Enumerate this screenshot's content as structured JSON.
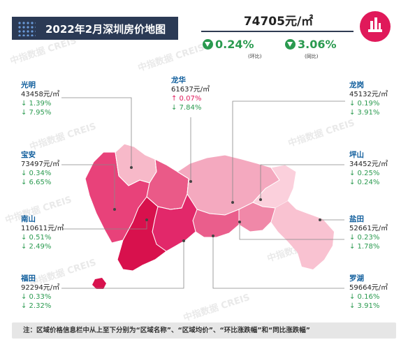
{
  "header": {
    "title": "2022年2月深圳房价地图",
    "avg_price": "74705元/㎡",
    "mom": {
      "value": "0.24%",
      "label": "(环比)"
    },
    "yoy": {
      "value": "3.06%",
      "label": "(同比)"
    }
  },
  "watermark": "中指数据 CREIS",
  "districts": [
    {
      "id": "guangming",
      "name": "光明",
      "price": "43458元/㎡",
      "mom": "↓ 1.39%",
      "yoy": "↓ 7.95%",
      "mom_dir": "down",
      "yoy_dir": "down",
      "color": "#f7b9c9"
    },
    {
      "id": "longhua",
      "name": "龙华",
      "price": "61637元/㎡",
      "mom": "↑ 0.07%",
      "yoy": "↓ 7.84%",
      "mom_dir": "up",
      "yoy_dir": "down",
      "color": "#ea5a88"
    },
    {
      "id": "longgang",
      "name": "龙岗",
      "price": "45132元/㎡",
      "mom": "↓ 0.19%",
      "yoy": "↓ 3.91%",
      "mom_dir": "down",
      "yoy_dir": "down",
      "color": "#f4a9bf"
    },
    {
      "id": "baoan",
      "name": "宝安",
      "price": "73497元/㎡",
      "mom": "↓ 0.34%",
      "yoy": "↓ 6.65%",
      "mom_dir": "down",
      "yoy_dir": "down",
      "color": "#e8427a"
    },
    {
      "id": "pingshan",
      "name": "坪山",
      "price": "34452元/㎡",
      "mom": "↓ 0.25%",
      "yoy": "↓ 0.24%",
      "mom_dir": "down",
      "yoy_dir": "down",
      "color": "#fbd0dc"
    },
    {
      "id": "nanshan",
      "name": "南山",
      "price": "110611元/㎡",
      "mom": "↓ 0.51%",
      "yoy": "↓ 2.49%",
      "mom_dir": "down",
      "yoy_dir": "down",
      "color": "#d8114d"
    },
    {
      "id": "yantian",
      "name": "盐田",
      "price": "52661元/㎡",
      "mom": "↓ 0.23%",
      "yoy": "↓ 1.78%",
      "mom_dir": "down",
      "yoy_dir": "down",
      "color": "#f088a8"
    },
    {
      "id": "futian",
      "name": "福田",
      "price": "92294元/㎡",
      "mom": "↓ 0.33%",
      "yoy": "↓ 2.32%",
      "mom_dir": "down",
      "yoy_dir": "down",
      "color": "#e2286a"
    },
    {
      "id": "luohu",
      "name": "罗湖",
      "price": "59664元/㎡",
      "mom": "↓ 0.16%",
      "yoy": "↓ 3.91%",
      "mom_dir": "down",
      "yoy_dir": "down",
      "color": "#ea5e8c"
    }
  ],
  "footnote": "注：区域价格信息栏中从上至下分别为“区域名称”、“区域均价”、“环比涨跌幅”和“同比涨跌幅”"
}
